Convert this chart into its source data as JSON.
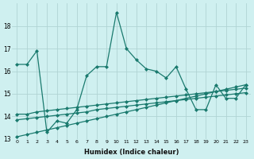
{
  "xlabel": "Humidex (Indice chaleur)",
  "x": [
    0,
    1,
    2,
    3,
    4,
    5,
    6,
    7,
    8,
    9,
    10,
    11,
    12,
    13,
    14,
    15,
    16,
    17,
    18,
    19,
    20,
    21,
    22,
    23
  ],
  "y_main": [
    16.3,
    16.3,
    16.9,
    13.3,
    13.8,
    13.7,
    14.3,
    15.8,
    16.2,
    16.2,
    18.6,
    17.0,
    16.5,
    16.1,
    16.0,
    15.7,
    16.2,
    15.2,
    14.3,
    14.3,
    15.4,
    14.8,
    14.8,
    15.4
  ],
  "y_trend_top": [
    14.1,
    14.1,
    14.2,
    14.25,
    14.3,
    14.35,
    14.4,
    14.45,
    14.5,
    14.55,
    14.6,
    14.65,
    14.7,
    14.75,
    14.8,
    14.85,
    14.9,
    14.95,
    15.0,
    15.05,
    15.1,
    15.15,
    15.2,
    15.25
  ],
  "y_trend_mid": [
    13.85,
    13.9,
    13.95,
    14.0,
    14.05,
    14.1,
    14.15,
    14.2,
    14.3,
    14.35,
    14.4,
    14.45,
    14.5,
    14.55,
    14.6,
    14.65,
    14.7,
    14.75,
    14.8,
    14.85,
    14.9,
    14.95,
    15.0,
    15.05
  ],
  "y_trend_bot": [
    13.1,
    13.2,
    13.3,
    13.4,
    13.5,
    13.6,
    13.7,
    13.8,
    13.9,
    14.0,
    14.1,
    14.2,
    14.3,
    14.4,
    14.5,
    14.6,
    14.7,
    14.8,
    14.9,
    15.0,
    15.1,
    15.2,
    15.3,
    15.4
  ],
  "line_color": "#1a7a6e",
  "bg_color": "#cff0f0",
  "grid_color": "#b0d4d4",
  "ylim": [
    13,
    19
  ],
  "yticks": [
    13,
    14,
    15,
    16,
    17,
    18
  ],
  "xticks": [
    0,
    1,
    2,
    3,
    4,
    5,
    6,
    7,
    8,
    9,
    10,
    11,
    12,
    13,
    14,
    15,
    16,
    17,
    18,
    19,
    20,
    21,
    22,
    23
  ],
  "marker": "D",
  "markersize": 2.0,
  "linewidth": 0.9
}
